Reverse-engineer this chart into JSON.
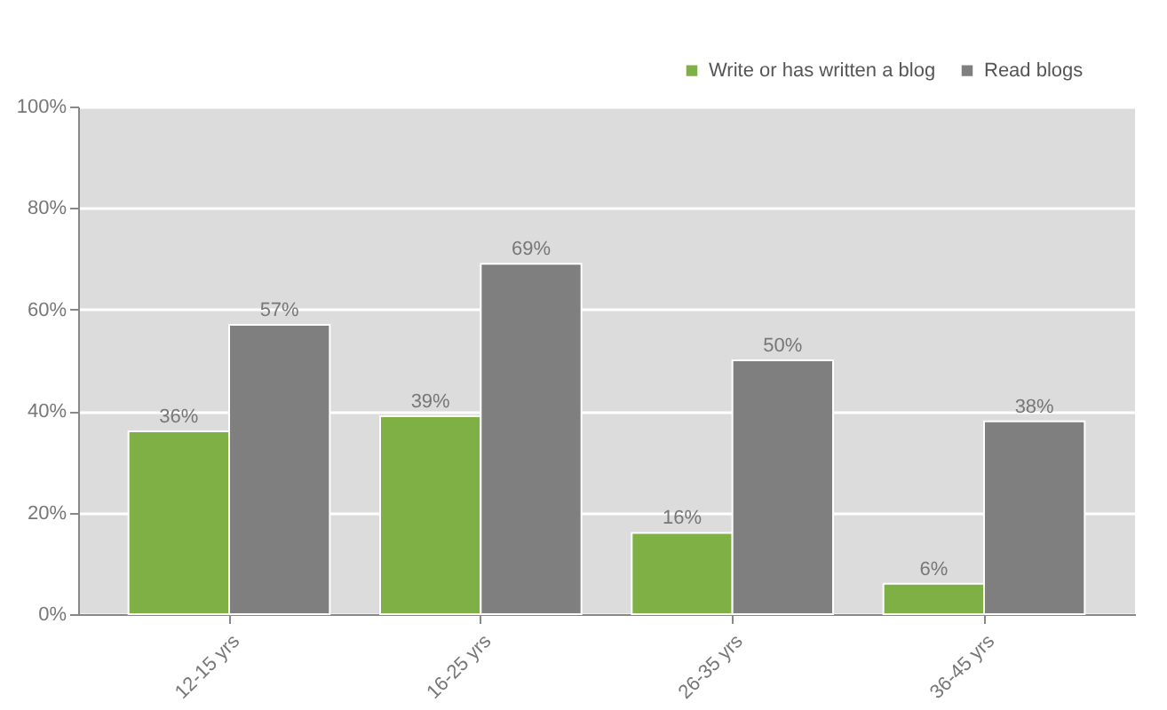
{
  "chart_data": {
    "type": "bar",
    "categories": [
      "12-15 yrs",
      "16-25 yrs",
      "26-35 yrs",
      "36-45 yrs"
    ],
    "series": [
      {
        "name": "Write or has written a blog",
        "color": "#7fb046",
        "values": [
          36,
          39,
          16,
          6
        ],
        "value_labels": [
          "36%",
          "39%",
          "16%",
          "6%"
        ]
      },
      {
        "name": "Read blogs",
        "color": "#7f7f7f",
        "values": [
          57,
          69,
          50,
          38
        ],
        "value_labels": [
          "57%",
          "69%",
          "50%",
          "38%"
        ]
      }
    ],
    "ylim": [
      0,
      100
    ],
    "yticks": [
      {
        "value": 0,
        "label": "0%"
      },
      {
        "value": 20,
        "label": "20%"
      },
      {
        "value": 40,
        "label": "40%"
      },
      {
        "value": 60,
        "label": "60%"
      },
      {
        "value": 80,
        "label": "80%"
      },
      {
        "value": 100,
        "label": "100%"
      }
    ],
    "grid": "y",
    "legend": "top right"
  }
}
